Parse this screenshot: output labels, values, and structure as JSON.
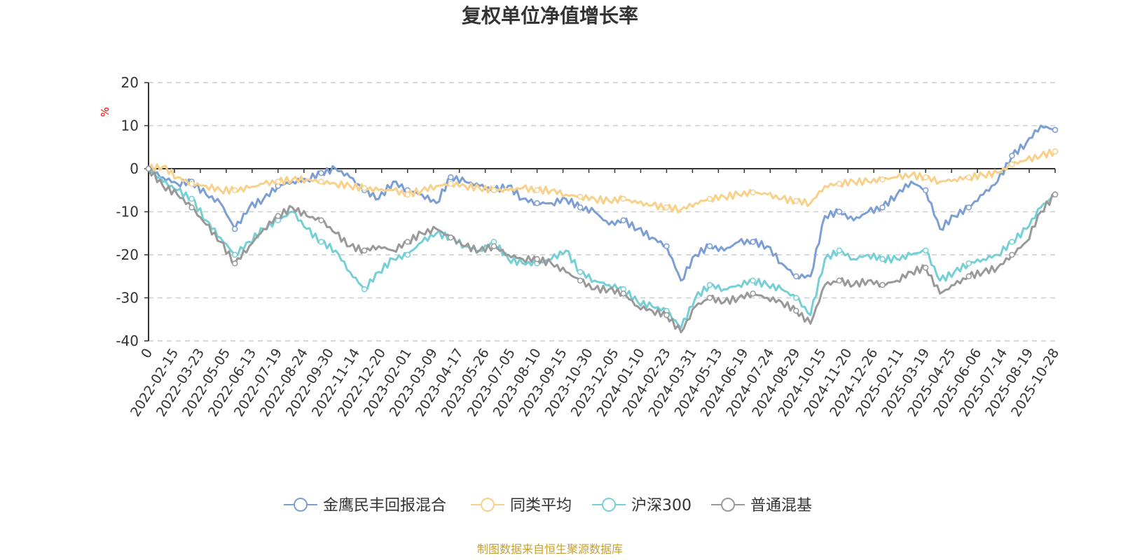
{
  "chart_data": {
    "type": "line",
    "title": "复权单位净值增长率",
    "ylabel": "%",
    "xlabel": "",
    "ylim": [
      -40,
      20
    ],
    "yticks": [
      20,
      10,
      0,
      -10,
      -20,
      -30,
      -40
    ],
    "grid": true,
    "legend_position": "bottom",
    "source": "制图数据来自恒生聚源数据库",
    "x_ticks": [
      "0",
      "2022-02-15",
      "2022-03-23",
      "2022-05-05",
      "2022-06-13",
      "2022-07-19",
      "2022-08-24",
      "2022-09-30",
      "2022-11-14",
      "2022-12-20",
      "2023-02-01",
      "2023-03-09",
      "2023-04-17",
      "2023-05-26",
      "2023-07-05",
      "2023-08-10",
      "2023-09-15",
      "2023-10-30",
      "2023-12-05",
      "2024-01-10",
      "2024-02-23",
      "2024-03-31",
      "2024-05-13",
      "2024-06-19",
      "2024-07-24",
      "2024-08-29",
      "2024-10-15",
      "2024-11-20",
      "2024-12-26",
      "2025-02-11",
      "2025-03-19",
      "2025-04-25",
      "2025-06-06",
      "2025-07-14",
      "2025-08-19",
      "2025-10-28"
    ],
    "series": [
      {
        "name": "金鹰民丰回报混合",
        "color": "#7b9fd4",
        "values": [
          0,
          -2,
          -3.5,
          -3,
          -6,
          -8,
          -14,
          -9,
          -7,
          -4,
          -3,
          -2.5,
          -1,
          0,
          -2,
          -5,
          -7,
          -3,
          -5,
          -6,
          -8,
          -2,
          -3,
          -4,
          -5,
          -4,
          -7,
          -8,
          -8,
          -7,
          -9,
          -10,
          -13,
          -12,
          -14,
          -16,
          -18,
          -26,
          -20,
          -18,
          -19,
          -17,
          -17,
          -18,
          -22,
          -25,
          -25,
          -11,
          -10,
          -12,
          -10,
          -9,
          -6,
          -3,
          -5,
          -14,
          -11,
          -9,
          -6,
          -3,
          3,
          6,
          10,
          9
        ]
      },
      {
        "name": "同类平均",
        "color": "#f8d08a",
        "values": [
          0,
          0.5,
          -2,
          -3.5,
          -4,
          -5,
          -5,
          -4.5,
          -3.5,
          -3,
          -2.5,
          -2.5,
          -3,
          -3.5,
          -4,
          -4.5,
          -5,
          -5,
          -6,
          -5,
          -4,
          -3.5,
          -4,
          -4.5,
          -5,
          -5,
          -4.5,
          -5,
          -5,
          -6,
          -6.5,
          -7,
          -7.5,
          -7,
          -8,
          -8.5,
          -9,
          -9.5,
          -8,
          -7,
          -6.5,
          -6,
          -5.5,
          -6,
          -7,
          -7.5,
          -8,
          -4,
          -3.5,
          -3,
          -3,
          -2.5,
          -2,
          -1.5,
          -2,
          -3,
          -2.5,
          -2,
          -1.5,
          -1,
          1,
          2,
          3,
          4
        ]
      },
      {
        "name": "沪深300",
        "color": "#76cfd6",
        "values": [
          0,
          -3,
          -5,
          -7,
          -12,
          -16,
          -20,
          -17,
          -14,
          -12,
          -10,
          -14,
          -17,
          -19,
          -24,
          -28,
          -24,
          -21,
          -20,
          -17,
          -15,
          -16,
          -18,
          -19,
          -17,
          -21,
          -22,
          -22,
          -21,
          -19,
          -24,
          -26,
          -27,
          -28,
          -31,
          -32,
          -33,
          -37,
          -30,
          -27,
          -28,
          -27,
          -26,
          -27,
          -28,
          -30,
          -34,
          -21,
          -19,
          -21,
          -20,
          -21,
          -21,
          -20,
          -19,
          -26,
          -24,
          -22,
          -21,
          -20,
          -17,
          -14,
          -9,
          -6
        ]
      },
      {
        "name": "普通混基",
        "color": "#999999",
        "values": [
          0,
          -4,
          -6,
          -9,
          -13,
          -17,
          -22,
          -18,
          -14,
          -11,
          -9,
          -11,
          -12,
          -15,
          -18,
          -19,
          -18,
          -19,
          -17,
          -15,
          -14,
          -16,
          -18,
          -19,
          -18,
          -20,
          -21,
          -21,
          -22,
          -24,
          -26,
          -28,
          -28,
          -29,
          -32,
          -33,
          -34,
          -38,
          -32,
          -30,
          -31,
          -30,
          -29,
          -30,
          -31,
          -33,
          -36,
          -27,
          -26,
          -27,
          -26,
          -27,
          -26,
          -24,
          -23,
          -29,
          -27,
          -25,
          -24,
          -23,
          -20,
          -17,
          -10,
          -6
        ]
      }
    ]
  }
}
